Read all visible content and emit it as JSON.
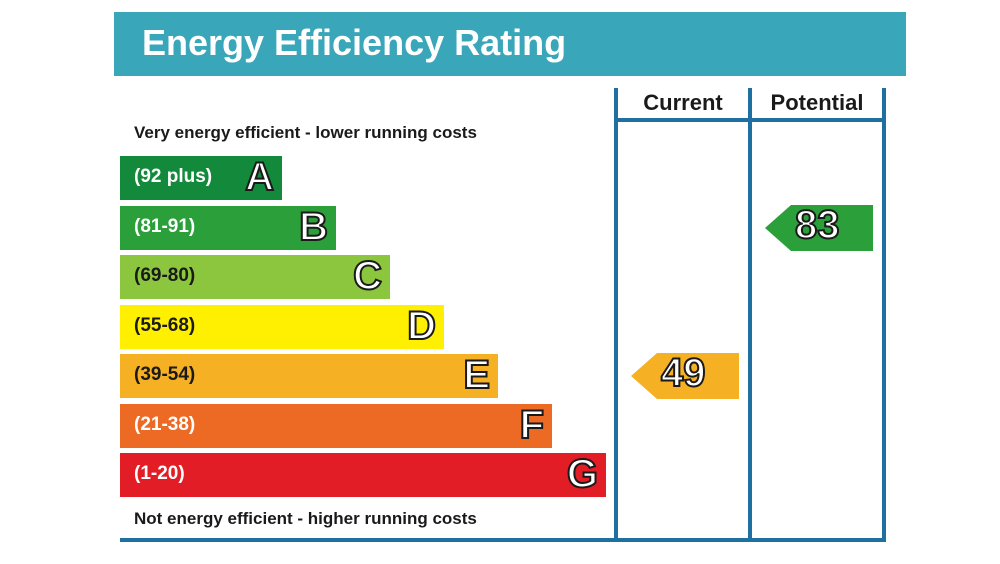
{
  "header": {
    "title": "Energy Efficiency Rating",
    "color": "#3aa6b9"
  },
  "notes": {
    "top": "Very energy efficient - lower running costs",
    "bottom": "Not energy efficient - higher running costs"
  },
  "columns": {
    "current": "Current",
    "potential": "Potential"
  },
  "chart_data": {
    "type": "table",
    "bands": [
      {
        "letter": "A",
        "range": "(92 plus)",
        "color": "#138a3b"
      },
      {
        "letter": "B",
        "range": "(81-91)",
        "color": "#2a9f3a"
      },
      {
        "letter": "C",
        "range": "(69-80)",
        "color": "#8cc63f"
      },
      {
        "letter": "D",
        "range": "(55-68)",
        "color": "#ffef00"
      },
      {
        "letter": "E",
        "range": "(39-54)",
        "color": "#f6b023"
      },
      {
        "letter": "F",
        "range": "(21-38)",
        "color": "#ec6a24"
      },
      {
        "letter": "G",
        "range": "(1-20)",
        "color": "#e31d25"
      }
    ],
    "current": {
      "value": "49",
      "band": "E",
      "color": "#f6b023"
    },
    "potential": {
      "value": "83",
      "band": "B",
      "color": "#2a9f3a"
    }
  }
}
